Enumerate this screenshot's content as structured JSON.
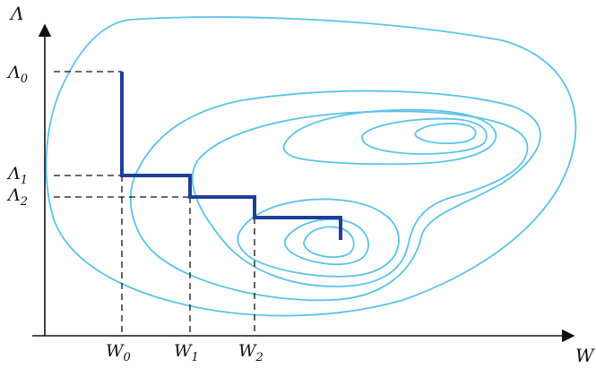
{
  "colors": {
    "axis": "#111111",
    "contour": "#5bc3e8",
    "path": "#1f3f96",
    "guide": "#111111"
  },
  "axes": {
    "y_label": "Λ",
    "x_label": "W"
  },
  "y_ticks": [
    {
      "base": "Λ",
      "sub": "0"
    },
    {
      "base": "Λ",
      "sub": "1"
    },
    {
      "base": "Λ",
      "sub": "2"
    }
  ],
  "x_ticks": [
    {
      "base": "W",
      "sub": "0"
    },
    {
      "base": "W",
      "sub": "1"
    },
    {
      "base": "W",
      "sub": "2"
    }
  ]
}
